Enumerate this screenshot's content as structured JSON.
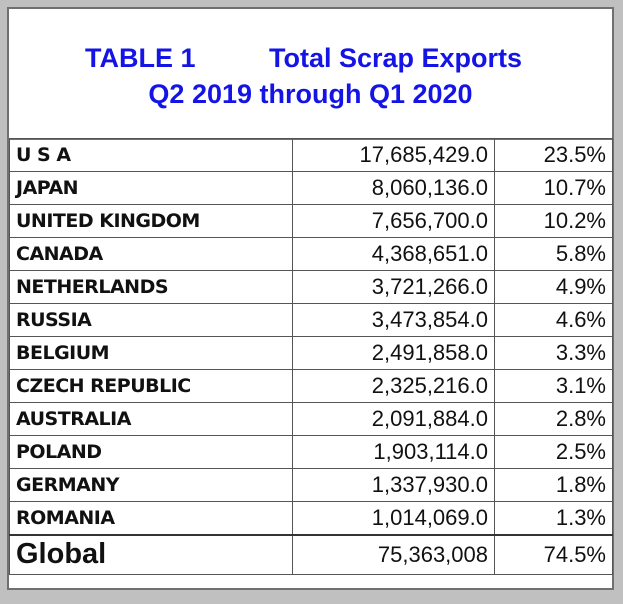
{
  "title": {
    "table_label": "TABLE 1",
    "name": "Total Scrap Exports",
    "period": "Q2 2019 through Q1 2020"
  },
  "colors": {
    "title": "#1414e6"
  },
  "rows": [
    {
      "country": "U S A",
      "value": "17,685,429.0",
      "share": "23.5%"
    },
    {
      "country": "JAPAN",
      "value": "8,060,136.0",
      "share": "10.7%"
    },
    {
      "country": "UNITED KINGDOM",
      "value": "7,656,700.0",
      "share": "10.2%"
    },
    {
      "country": "CANADA",
      "value": "4,368,651.0",
      "share": "5.8%"
    },
    {
      "country": "NETHERLANDS",
      "value": "3,721,266.0",
      "share": "4.9%"
    },
    {
      "country": "RUSSIA",
      "value": "3,473,854.0",
      "share": "4.6%"
    },
    {
      "country": "BELGIUM",
      "value": "2,491,858.0",
      "share": "3.3%"
    },
    {
      "country": "CZECH REPUBLIC",
      "value": "2,325,216.0",
      "share": "3.1%"
    },
    {
      "country": "AUSTRALIA",
      "value": "2,091,884.0",
      "share": "2.8%"
    },
    {
      "country": "POLAND",
      "value": "1,903,114.0",
      "share": "2.5%"
    },
    {
      "country": "GERMANY",
      "value": "1,337,930.0",
      "share": "1.8%"
    },
    {
      "country": "ROMANIA",
      "value": "1,014,069.0",
      "share": "1.3%"
    }
  ],
  "total": {
    "country": "Global",
    "value": "75,363,008",
    "share": "74.5%"
  }
}
